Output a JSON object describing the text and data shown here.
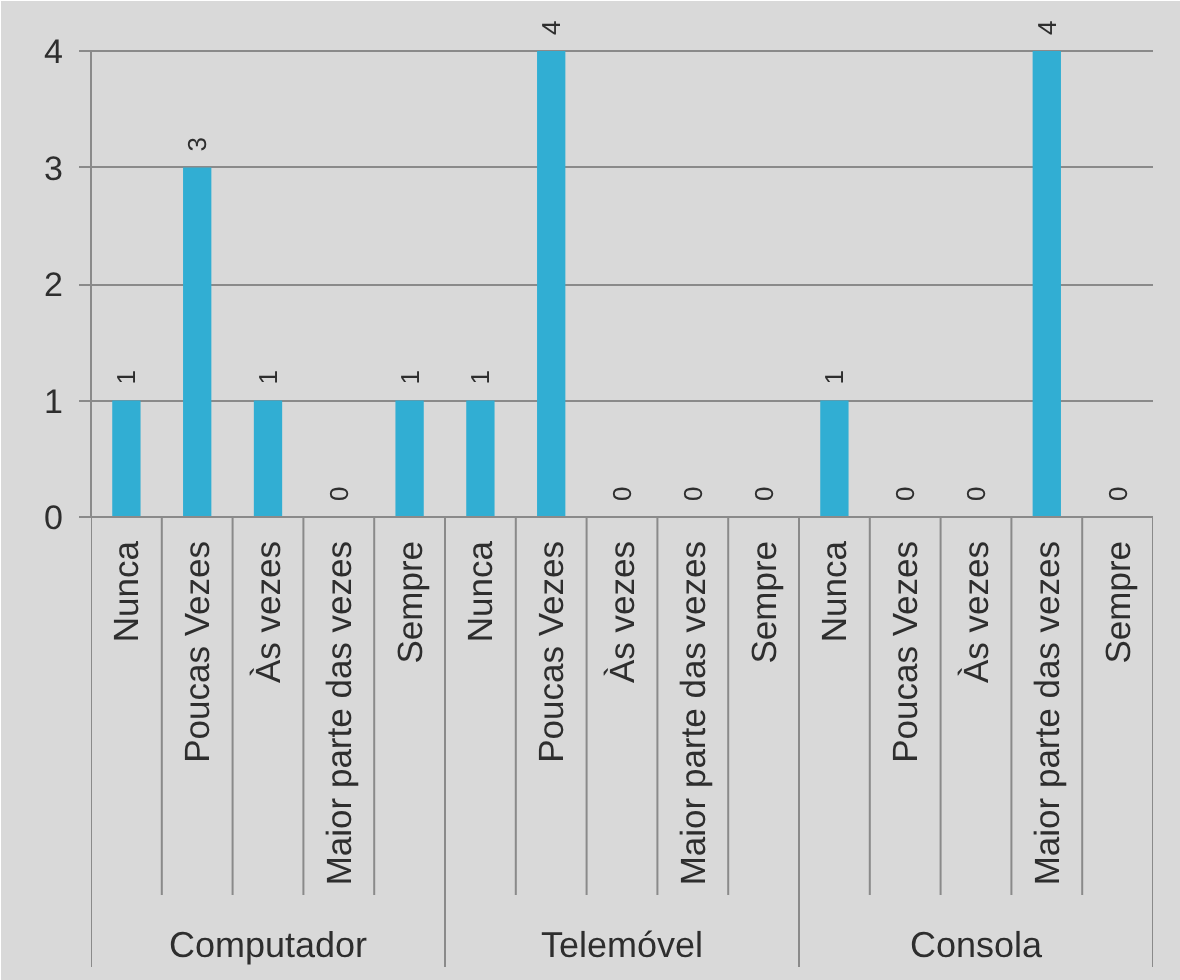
{
  "chart_data": {
    "type": "bar",
    "categories": [
      "Nunca",
      "Poucas Vezes",
      "Às vezes",
      "Maior parte das vezes",
      "Sempre",
      "Nunca",
      "Poucas Vezes",
      "Às vezes",
      "Maior parte das vezes",
      "Sempre",
      "Nunca",
      "Poucas Vezes",
      "Às vezes",
      "Maior parte das vezes",
      "Sempre"
    ],
    "values": [
      1,
      3,
      1,
      0,
      1,
      1,
      4,
      0,
      0,
      0,
      1,
      0,
      0,
      4,
      0
    ],
    "color": "#31aed3",
    "ylim": [
      0,
      4
    ],
    "yticks": [
      0,
      1,
      2,
      3,
      4
    ],
    "grid": "y",
    "data_labels": true,
    "annotations": [
      "Computador",
      "Telemóvel",
      "Consola"
    ]
  }
}
